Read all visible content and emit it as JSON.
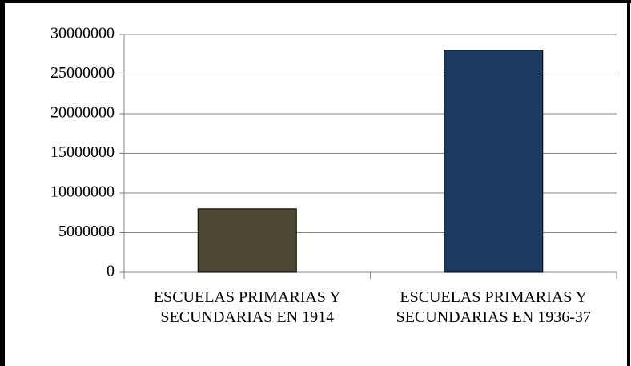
{
  "chart_data": {
    "type": "bar",
    "categories": [
      "ESCUELAS PRIMARIAS Y SECUNDARIAS EN 1914",
      "ESCUELAS PRIMARIAS Y SECUNDARIAS EN 1936-37"
    ],
    "values": [
      8000000,
      28000000
    ],
    "colors": [
      "#4d4630",
      "#1b3a60"
    ],
    "ylim": [
      0,
      30000000
    ],
    "yticks": [
      0,
      5000000,
      10000000,
      15000000,
      20000000,
      25000000,
      30000000
    ],
    "grid": true
  }
}
